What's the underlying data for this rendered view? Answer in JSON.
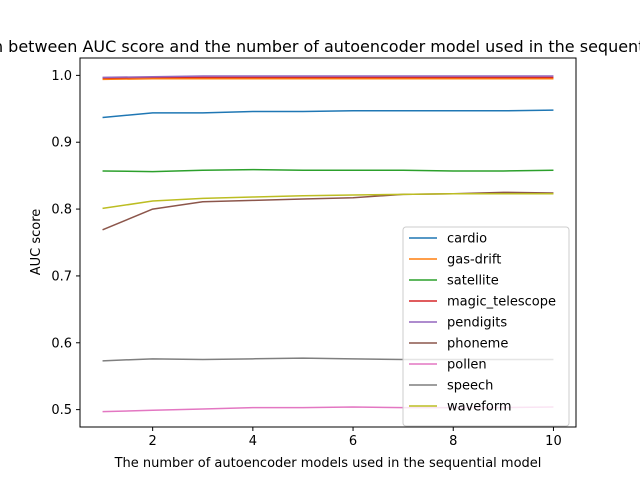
{
  "chart_data": {
    "type": "line",
    "title": "Relation between AUC score and the number of autoencoder model used in the sequential model",
    "xlabel": "The number of autoencoder models used in the sequential model",
    "ylabel": "AUC score",
    "x": [
      1,
      2,
      3,
      4,
      5,
      6,
      7,
      8,
      9,
      10
    ],
    "xlim": [
      0.55,
      10.45
    ],
    "ylim": [
      0.474,
      1.026
    ],
    "xticks": [
      "2",
      "4",
      "6",
      "8",
      "10"
    ],
    "yticks": [
      "0.5",
      "0.6",
      "0.7",
      "0.8",
      "0.9",
      "1.0"
    ],
    "grid": false,
    "legend_position": "lower-right",
    "series": [
      {
        "name": "cardio",
        "color": "#1f77b4",
        "values": [
          0.937,
          0.944,
          0.944,
          0.946,
          0.946,
          0.947,
          0.947,
          0.947,
          0.947,
          0.948
        ]
      },
      {
        "name": "gas-drift",
        "color": "#ff7f0e",
        "values": [
          0.994,
          0.995,
          0.995,
          0.995,
          0.995,
          0.995,
          0.995,
          0.995,
          0.995,
          0.995
        ]
      },
      {
        "name": "satellite",
        "color": "#2ca02c",
        "values": [
          0.857,
          0.856,
          0.858,
          0.859,
          0.858,
          0.858,
          0.858,
          0.857,
          0.857,
          0.858
        ]
      },
      {
        "name": "magic_telescope",
        "color": "#d62728",
        "values": [
          0.996,
          0.997,
          0.997,
          0.997,
          0.997,
          0.997,
          0.997,
          0.997,
          0.997,
          0.997
        ]
      },
      {
        "name": "pendigits",
        "color": "#9467bd",
        "values": [
          0.997,
          0.998,
          0.999,
          0.999,
          0.999,
          0.999,
          0.999,
          0.999,
          0.999,
          0.999
        ]
      },
      {
        "name": "phoneme",
        "color": "#8c564b",
        "values": [
          0.769,
          0.8,
          0.811,
          0.813,
          0.815,
          0.817,
          0.822,
          0.823,
          0.825,
          0.824
        ]
      },
      {
        "name": "pollen",
        "color": "#e377c2",
        "values": [
          0.497,
          0.499,
          0.501,
          0.503,
          0.503,
          0.504,
          0.503,
          0.503,
          0.503,
          0.504
        ]
      },
      {
        "name": "speech",
        "color": "#7f7f7f",
        "values": [
          0.573,
          0.576,
          0.575,
          0.576,
          0.577,
          0.576,
          0.575,
          0.575,
          0.575,
          0.575
        ]
      },
      {
        "name": "waveform",
        "color": "#bcbd22",
        "values": [
          0.801,
          0.812,
          0.816,
          0.818,
          0.82,
          0.821,
          0.822,
          0.823,
          0.823,
          0.823
        ]
      }
    ]
  }
}
